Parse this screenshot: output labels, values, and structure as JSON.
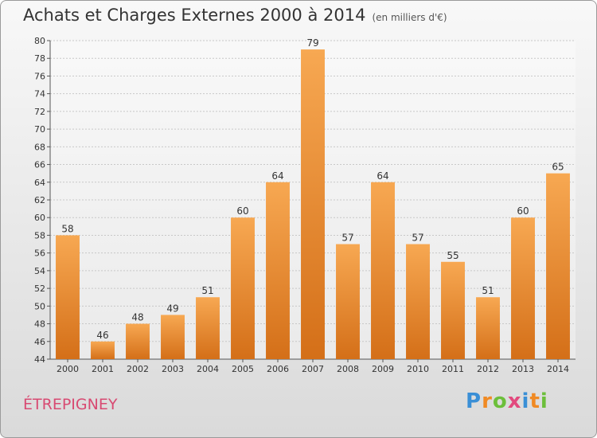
{
  "header": {
    "title": "Achats et Charges Externes 2000 à 2014",
    "subtitle": "(en milliers d'€)"
  },
  "footer": {
    "commune": "ÉTREPIGNEY",
    "logo": {
      "text": "Proxiti",
      "letters": [
        {
          "char": "P",
          "color": "#3a8fd6"
        },
        {
          "char": "r",
          "color": "#f08a24"
        },
        {
          "char": "o",
          "color": "#6cbf3b"
        },
        {
          "char": "x",
          "color": "#e24a7e"
        },
        {
          "char": "i",
          "color": "#3a8fd6"
        },
        {
          "char": "t",
          "color": "#f08a24"
        },
        {
          "char": "i",
          "color": "#6cbf3b"
        }
      ]
    }
  },
  "colors": {
    "bar_top": "#f7a852",
    "bar_bottom": "#d46f18",
    "commune": "#d84a72"
  },
  "chart_data": {
    "type": "bar",
    "title": "Achats et Charges Externes 2000 à 2014",
    "subtitle": "(en milliers d'€)",
    "categories": [
      "2000",
      "2001",
      "2002",
      "2003",
      "2004",
      "2005",
      "2006",
      "2007",
      "2008",
      "2009",
      "2010",
      "2011",
      "2012",
      "2013",
      "2014"
    ],
    "values": [
      58,
      46,
      48,
      49,
      51,
      60,
      64,
      79,
      57,
      64,
      57,
      55,
      51,
      60,
      65
    ],
    "ylim": [
      44,
      80
    ],
    "yticks": [
      44,
      46,
      48,
      50,
      52,
      54,
      56,
      58,
      60,
      62,
      64,
      66,
      68,
      70,
      72,
      74,
      76,
      78,
      80
    ],
    "grid": true,
    "xlabel": "",
    "ylabel": ""
  }
}
